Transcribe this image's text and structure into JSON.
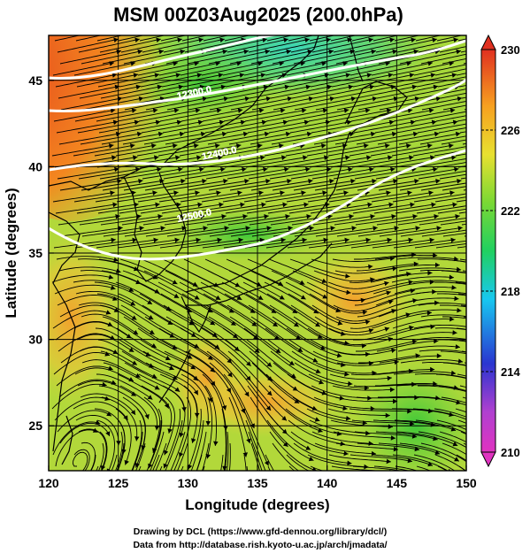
{
  "title": "MSM 00Z03Aug2025 (200.0hPa)",
  "xlabel": "Longitude (degrees)",
  "ylabel": "Latitude  (degrees)",
  "x_ticks": [
    "120",
    "125",
    "130",
    "135",
    "140",
    "145",
    "150"
  ],
  "y_ticks": [
    "25",
    "30",
    "35",
    "40",
    "45"
  ],
  "x_range": [
    120,
    150
  ],
  "y_range": [
    22.4,
    47.6
  ],
  "colorbar": {
    "labels": [
      "210",
      "214",
      "218",
      "222",
      "226",
      "230"
    ],
    "min": 210,
    "max": 230,
    "colors": [
      "#e033c0",
      "#2a35d0",
      "#18c8f0",
      "#20d060",
      "#7ad834",
      "#e8e030",
      "#f7a020",
      "#e03020"
    ]
  },
  "contours": [
    {
      "label": "12300.0",
      "lon": 130.5,
      "lat": 44.1
    },
    {
      "label": "12400.0",
      "lon": 132.3,
      "lat": 40.6
    },
    {
      "label": "12500.0",
      "lon": 130.5,
      "lat": 37.0
    }
  ],
  "footer": {
    "line1": "Drawing by DCL (https://www.gfd-dennou.org/library/dcl/)",
    "line2": "Data from http://database.rish.kyoto-u.ac.jp/arch/jmadata/"
  }
}
